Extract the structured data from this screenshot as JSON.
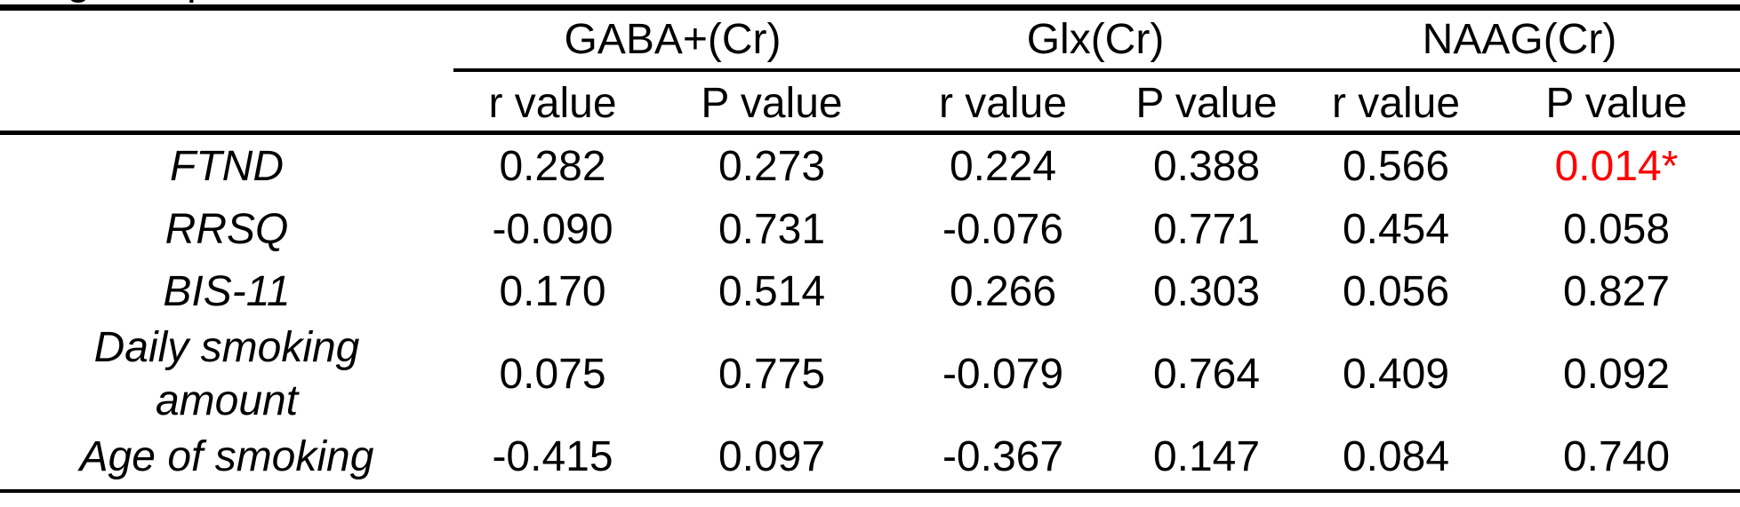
{
  "caption_fragment": {
    "note": "caption line cut off at top edge; only two letter descenders visible",
    "descender_letters": [
      "g",
      "p"
    ]
  },
  "table": {
    "text_color": "#000000",
    "significance_color": "#ff0000",
    "column_groups": [
      {
        "label": "GABA+(Cr)"
      },
      {
        "label": "Glx(Cr)"
      },
      {
        "label": "NAAG(Cr)"
      }
    ],
    "subheaders": [
      "r value",
      "P value",
      "r value",
      "P value",
      "r value",
      "P value"
    ],
    "rows": [
      {
        "label": "FTND",
        "values": [
          {
            "text": "0.282"
          },
          {
            "text": "0.273"
          },
          {
            "text": "0.224"
          },
          {
            "text": "0.388"
          },
          {
            "text": "0.566"
          },
          {
            "text": "0.014*",
            "significant": true
          }
        ]
      },
      {
        "label": "RRSQ",
        "values": [
          {
            "text": "-0.090"
          },
          {
            "text": "0.731"
          },
          {
            "text": "-0.076"
          },
          {
            "text": "0.771"
          },
          {
            "text": "0.454"
          },
          {
            "text": "0.058"
          }
        ]
      },
      {
        "label": "BIS-11",
        "values": [
          {
            "text": "0.170"
          },
          {
            "text": "0.514"
          },
          {
            "text": "0.266"
          },
          {
            "text": "0.303"
          },
          {
            "text": "0.056"
          },
          {
            "text": "0.827"
          }
        ]
      },
      {
        "label": "Daily smoking amount",
        "values": [
          {
            "text": "0.075"
          },
          {
            "text": "0.775"
          },
          {
            "text": "-0.079"
          },
          {
            "text": "0.764"
          },
          {
            "text": "0.409"
          },
          {
            "text": "0.092"
          }
        ]
      },
      {
        "label": "Age of smoking",
        "values": [
          {
            "text": "-0.415"
          },
          {
            "text": "0.097"
          },
          {
            "text": "-0.367"
          },
          {
            "text": "0.147"
          },
          {
            "text": "0.084"
          },
          {
            "text": "0.740"
          }
        ]
      }
    ]
  }
}
